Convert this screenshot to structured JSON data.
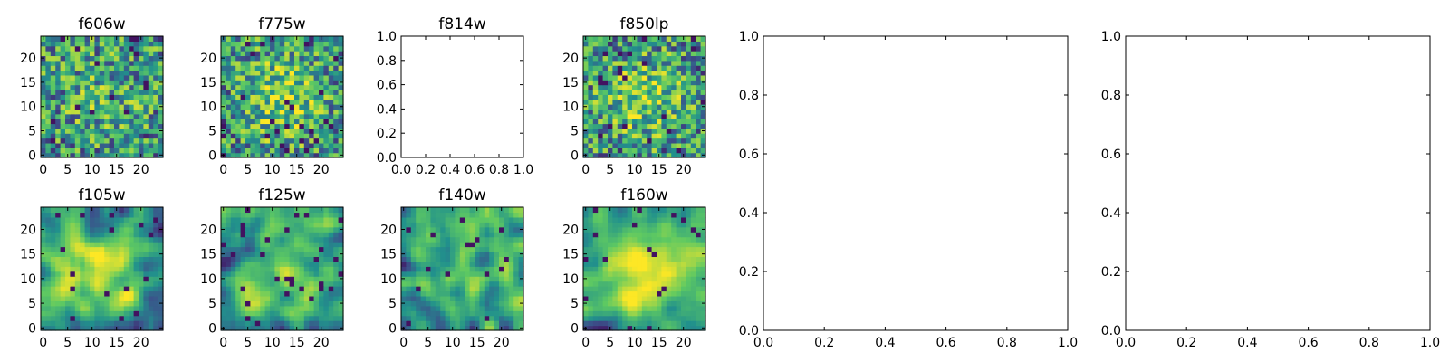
{
  "chart_data": [
    {
      "type": "heatmap",
      "title": "f606w",
      "grid": false,
      "size": 25,
      "seed": 11,
      "center_boost": 0.15,
      "smooth": 0,
      "xlim": [
        -0.5,
        24.5
      ],
      "ylim": [
        -0.5,
        24.5
      ],
      "xticks": [
        {
          "v": 0,
          "label": "0"
        },
        {
          "v": 5,
          "label": "5"
        },
        {
          "v": 10,
          "label": "10"
        },
        {
          "v": 15,
          "label": "15"
        },
        {
          "v": 20,
          "label": "20"
        }
      ],
      "yticks": [
        {
          "v": 0,
          "label": "0"
        },
        {
          "v": 5,
          "label": "5"
        },
        {
          "v": 10,
          "label": "10"
        },
        {
          "v": 15,
          "label": "15"
        },
        {
          "v": 20,
          "label": "20"
        }
      ]
    },
    {
      "type": "heatmap",
      "title": "f775w",
      "grid": false,
      "size": 25,
      "seed": 23,
      "center_boost": 0.35,
      "smooth": 0,
      "xlim": [
        -0.5,
        24.5
      ],
      "ylim": [
        -0.5,
        24.5
      ],
      "xticks": [
        {
          "v": 0,
          "label": "0"
        },
        {
          "v": 5,
          "label": "5"
        },
        {
          "v": 10,
          "label": "10"
        },
        {
          "v": 15,
          "label": "15"
        },
        {
          "v": 20,
          "label": "20"
        }
      ],
      "yticks": [
        {
          "v": 0,
          "label": "0"
        },
        {
          "v": 5,
          "label": "5"
        },
        {
          "v": 10,
          "label": "10"
        },
        {
          "v": 15,
          "label": "15"
        },
        {
          "v": 20,
          "label": "20"
        }
      ]
    },
    {
      "type": "empty",
      "title": "f814w",
      "xlim": [
        0,
        1
      ],
      "ylim": [
        0,
        1
      ],
      "xticks": [
        {
          "v": 0,
          "label": "0.0"
        },
        {
          "v": 0.2,
          "label": "0.2"
        },
        {
          "v": 0.4,
          "label": "0.4"
        },
        {
          "v": 0.6,
          "label": "0.6"
        },
        {
          "v": 0.8,
          "label": "0.8"
        },
        {
          "v": 1,
          "label": "1.0"
        }
      ],
      "yticks": [
        {
          "v": 0,
          "label": "0.0"
        },
        {
          "v": 0.2,
          "label": "0.2"
        },
        {
          "v": 0.4,
          "label": "0.4"
        },
        {
          "v": 0.6,
          "label": "0.6"
        },
        {
          "v": 0.8,
          "label": "0.8"
        },
        {
          "v": 1,
          "label": "1.0"
        }
      ]
    },
    {
      "type": "heatmap",
      "title": "f850lp",
      "grid": false,
      "size": 25,
      "seed": 37,
      "center_boost": 0.3,
      "smooth": 0,
      "xlim": [
        -0.5,
        24.5
      ],
      "ylim": [
        -0.5,
        24.5
      ],
      "xticks": [
        {
          "v": 0,
          "label": "0"
        },
        {
          "v": 5,
          "label": "5"
        },
        {
          "v": 10,
          "label": "10"
        },
        {
          "v": 15,
          "label": "15"
        },
        {
          "v": 20,
          "label": "20"
        }
      ],
      "yticks": [
        {
          "v": 0,
          "label": "0"
        },
        {
          "v": 5,
          "label": "5"
        },
        {
          "v": 10,
          "label": "10"
        },
        {
          "v": 15,
          "label": "15"
        },
        {
          "v": 20,
          "label": "20"
        }
      ]
    },
    {
      "type": "empty",
      "title": "",
      "xlim": [
        0,
        1
      ],
      "ylim": [
        0,
        1
      ],
      "xticks": [
        {
          "v": 0,
          "label": "0.0"
        },
        {
          "v": 0.2,
          "label": "0.2"
        },
        {
          "v": 0.4,
          "label": "0.4"
        },
        {
          "v": 0.6,
          "label": "0.6"
        },
        {
          "v": 0.8,
          "label": "0.8"
        },
        {
          "v": 1,
          "label": "1.0"
        }
      ],
      "yticks": [
        {
          "v": 0,
          "label": "0.0"
        },
        {
          "v": 0.2,
          "label": "0.2"
        },
        {
          "v": 0.4,
          "label": "0.4"
        },
        {
          "v": 0.6,
          "label": "0.6"
        },
        {
          "v": 0.8,
          "label": "0.8"
        },
        {
          "v": 1,
          "label": "1.0"
        }
      ]
    },
    {
      "type": "empty",
      "title": "",
      "xlim": [
        0,
        1
      ],
      "ylim": [
        0,
        1
      ],
      "xticks": [
        {
          "v": 0,
          "label": "0.0"
        },
        {
          "v": 0.2,
          "label": "0.2"
        },
        {
          "v": 0.4,
          "label": "0.4"
        },
        {
          "v": 0.6,
          "label": "0.6"
        },
        {
          "v": 0.8,
          "label": "0.8"
        },
        {
          "v": 1,
          "label": "1.0"
        }
      ],
      "yticks": [
        {
          "v": 0,
          "label": "0.0"
        },
        {
          "v": 0.2,
          "label": "0.2"
        },
        {
          "v": 0.4,
          "label": "0.4"
        },
        {
          "v": 0.6,
          "label": "0.6"
        },
        {
          "v": 0.8,
          "label": "0.8"
        },
        {
          "v": 1,
          "label": "1.0"
        }
      ]
    },
    {
      "type": "heatmap",
      "title": "f105w",
      "grid": false,
      "size": 25,
      "seed": 53,
      "center_boost": 0.45,
      "smooth": 2,
      "xlim": [
        -0.5,
        24.5
      ],
      "ylim": [
        -0.5,
        24.5
      ],
      "xticks": [
        {
          "v": 0,
          "label": "0"
        },
        {
          "v": 5,
          "label": "5"
        },
        {
          "v": 10,
          "label": "10"
        },
        {
          "v": 15,
          "label": "15"
        },
        {
          "v": 20,
          "label": "20"
        }
      ],
      "yticks": [
        {
          "v": 0,
          "label": "0"
        },
        {
          "v": 5,
          "label": "5"
        },
        {
          "v": 10,
          "label": "10"
        },
        {
          "v": 15,
          "label": "15"
        },
        {
          "v": 20,
          "label": "20"
        }
      ]
    },
    {
      "type": "heatmap",
      "title": "f125w",
      "grid": false,
      "size": 25,
      "seed": 67,
      "center_boost": 0.2,
      "smooth": 2,
      "xlim": [
        -0.5,
        24.5
      ],
      "ylim": [
        -0.5,
        24.5
      ],
      "xticks": [
        {
          "v": 0,
          "label": "0"
        },
        {
          "v": 5,
          "label": "5"
        },
        {
          "v": 10,
          "label": "10"
        },
        {
          "v": 15,
          "label": "15"
        },
        {
          "v": 20,
          "label": "20"
        }
      ],
      "yticks": [
        {
          "v": 0,
          "label": "0"
        },
        {
          "v": 5,
          "label": "5"
        },
        {
          "v": 10,
          "label": "10"
        },
        {
          "v": 15,
          "label": "15"
        },
        {
          "v": 20,
          "label": "20"
        }
      ]
    },
    {
      "type": "heatmap",
      "title": "f140w",
      "grid": false,
      "size": 25,
      "seed": 79,
      "center_boost": 0.2,
      "smooth": 2,
      "xlim": [
        -0.5,
        24.5
      ],
      "ylim": [
        -0.5,
        24.5
      ],
      "xticks": [
        {
          "v": 0,
          "label": "0"
        },
        {
          "v": 5,
          "label": "5"
        },
        {
          "v": 10,
          "label": "10"
        },
        {
          "v": 15,
          "label": "15"
        },
        {
          "v": 20,
          "label": "20"
        }
      ],
      "yticks": [
        {
          "v": 0,
          "label": "0"
        },
        {
          "v": 5,
          "label": "5"
        },
        {
          "v": 10,
          "label": "10"
        },
        {
          "v": 15,
          "label": "15"
        },
        {
          "v": 20,
          "label": "20"
        }
      ]
    },
    {
      "type": "heatmap",
      "title": "f160w",
      "grid": false,
      "size": 25,
      "seed": 97,
      "center_boost": 0.45,
      "smooth": 2,
      "xlim": [
        -0.5,
        24.5
      ],
      "ylim": [
        -0.5,
        24.5
      ],
      "xticks": [
        {
          "v": 0,
          "label": "0"
        },
        {
          "v": 5,
          "label": "5"
        },
        {
          "v": 10,
          "label": "10"
        },
        {
          "v": 15,
          "label": "15"
        },
        {
          "v": 20,
          "label": "20"
        }
      ],
      "yticks": [
        {
          "v": 0,
          "label": "0"
        },
        {
          "v": 5,
          "label": "5"
        },
        {
          "v": 10,
          "label": "10"
        },
        {
          "v": 15,
          "label": "15"
        },
        {
          "v": 20,
          "label": "20"
        }
      ]
    }
  ],
  "colormap": [
    "#440154",
    "#3b528b",
    "#21918c",
    "#5ec962",
    "#fde725"
  ]
}
